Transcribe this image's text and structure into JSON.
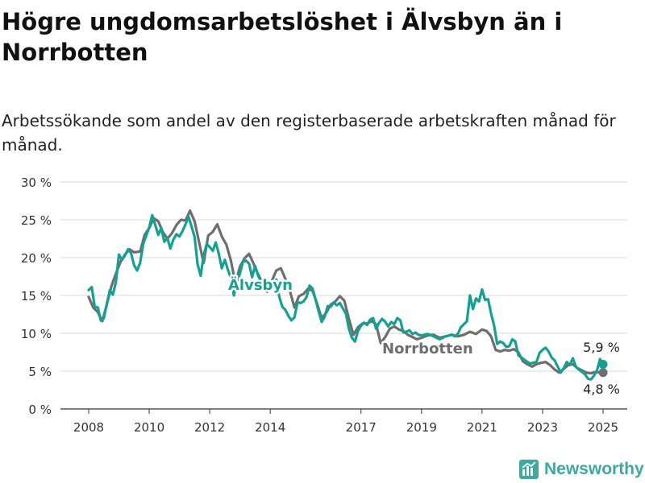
{
  "title": "Högre ungdomsarbetslöshet i Älvsbyn än i Norrbotten",
  "subtitle": "Arbetssökande som andel av den registerbaserade arbetskraften månad för månad.",
  "brand": {
    "name": "Newsworthy",
    "color": "#3ea99f",
    "logo_icon": "bar-chart-logo-icon"
  },
  "chart_data": {
    "type": "line",
    "title": "Högre ungdomsarbetslöshet i Älvsbyn än i Norrbotten",
    "xlabel": "",
    "ylabel": "",
    "ylim": [
      0,
      30
    ],
    "xlim": [
      2008,
      2025.5
    ],
    "y_ticks": [
      0,
      5,
      10,
      15,
      20,
      25,
      30
    ],
    "y_tick_labels": [
      "0 %",
      "5 %",
      "10 %",
      "15 %",
      "20 %",
      "25 %",
      "30 %"
    ],
    "x_ticks": [
      2008,
      2010,
      2012,
      2014,
      2017,
      2019,
      2021,
      2023,
      2025
    ],
    "x_tick_labels": [
      "2008",
      "2010",
      "2012",
      "2014",
      "2017",
      "2019",
      "2021",
      "2023",
      "2025"
    ],
    "grid": true,
    "series": [
      {
        "name": "Norrbotten",
        "label": "Norrbotten",
        "color": "#6e6e6e",
        "end_label": "4,8 %",
        "points": [
          [
            2008.0,
            14.8
          ],
          [
            2008.15,
            13.4
          ],
          [
            2008.3,
            12.8
          ],
          [
            2008.45,
            11.6
          ],
          [
            2008.6,
            13.8
          ],
          [
            2008.75,
            16.2
          ],
          [
            2008.9,
            17.9
          ],
          [
            2009.05,
            19.4
          ],
          [
            2009.2,
            20.4
          ],
          [
            2009.35,
            21.1
          ],
          [
            2009.5,
            20.7
          ],
          [
            2009.7,
            20.8
          ],
          [
            2009.85,
            23.0
          ],
          [
            2010.0,
            23.9
          ],
          [
            2010.15,
            25.2
          ],
          [
            2010.3,
            24.8
          ],
          [
            2010.45,
            23.4
          ],
          [
            2010.6,
            22.5
          ],
          [
            2010.75,
            23.2
          ],
          [
            2010.9,
            24.3
          ],
          [
            2011.05,
            25.0
          ],
          [
            2011.2,
            24.9
          ],
          [
            2011.35,
            26.2
          ],
          [
            2011.5,
            24.8
          ],
          [
            2011.65,
            22.0
          ],
          [
            2011.8,
            19.3
          ],
          [
            2011.95,
            22.9
          ],
          [
            2012.1,
            23.4
          ],
          [
            2012.25,
            24.4
          ],
          [
            2012.4,
            22.8
          ],
          [
            2012.55,
            21.7
          ],
          [
            2012.7,
            19.6
          ],
          [
            2012.85,
            16.6
          ],
          [
            2013.0,
            18.8
          ],
          [
            2013.15,
            19.9
          ],
          [
            2013.3,
            20.5
          ],
          [
            2013.45,
            19.2
          ],
          [
            2013.6,
            17.8
          ],
          [
            2013.75,
            16.6
          ],
          [
            2013.9,
            15.5
          ],
          [
            2014.05,
            16.9
          ],
          [
            2014.2,
            18.3
          ],
          [
            2014.35,
            18.6
          ],
          [
            2014.5,
            17.2
          ],
          [
            2014.65,
            15.6
          ],
          [
            2014.8,
            13.4
          ],
          [
            2014.95,
            14.9
          ],
          [
            2015.1,
            15.2
          ],
          [
            2015.25,
            15.9
          ],
          [
            2015.4,
            15.6
          ],
          [
            2015.55,
            13.9
          ],
          [
            2015.7,
            12.0
          ],
          [
            2015.85,
            12.7
          ],
          [
            2016.0,
            13.8
          ],
          [
            2016.15,
            14.2
          ],
          [
            2016.3,
            14.9
          ],
          [
            2016.45,
            14.3
          ],
          [
            2016.6,
            11.9
          ],
          [
            2016.75,
            9.8
          ],
          [
            2016.9,
            10.8
          ],
          [
            2017.05,
            11.3
          ],
          [
            2017.2,
            11.3
          ],
          [
            2017.35,
            11.6
          ],
          [
            2017.5,
            11.2
          ],
          [
            2017.65,
            8.7
          ],
          [
            2017.8,
            9.5
          ],
          [
            2017.95,
            10.6
          ],
          [
            2018.1,
            10.9
          ],
          [
            2018.25,
            10.5
          ],
          [
            2018.4,
            10.3
          ],
          [
            2018.55,
            9.8
          ],
          [
            2018.7,
            9.5
          ],
          [
            2018.85,
            9.2
          ],
          [
            2019.0,
            9.4
          ],
          [
            2019.2,
            9.7
          ],
          [
            2019.4,
            9.8
          ],
          [
            2019.6,
            9.4
          ],
          [
            2019.8,
            9.6
          ],
          [
            2020.0,
            9.8
          ],
          [
            2020.2,
            9.6
          ],
          [
            2020.4,
            9.8
          ],
          [
            2020.6,
            10.2
          ],
          [
            2020.8,
            9.9
          ],
          [
            2021.0,
            10.5
          ],
          [
            2021.15,
            10.3
          ],
          [
            2021.3,
            9.6
          ],
          [
            2021.45,
            7.8
          ],
          [
            2021.6,
            7.6
          ],
          [
            2021.75,
            7.8
          ],
          [
            2021.9,
            7.7
          ],
          [
            2022.05,
            7.9
          ],
          [
            2022.2,
            7.5
          ],
          [
            2022.35,
            6.3
          ],
          [
            2022.5,
            5.9
          ],
          [
            2022.65,
            5.6
          ],
          [
            2022.8,
            5.9
          ],
          [
            2022.95,
            6.1
          ],
          [
            2023.1,
            6.2
          ],
          [
            2023.25,
            5.8
          ],
          [
            2023.4,
            5.2
          ],
          [
            2023.55,
            4.8
          ],
          [
            2023.7,
            5.3
          ],
          [
            2023.85,
            5.8
          ],
          [
            2024.0,
            5.9
          ],
          [
            2024.15,
            5.4
          ],
          [
            2024.3,
            5.1
          ],
          [
            2024.45,
            4.8
          ],
          [
            2024.6,
            4.7
          ],
          [
            2024.75,
            4.9
          ],
          [
            2024.9,
            4.8
          ],
          [
            2025.0,
            4.8
          ]
        ]
      },
      {
        "name": "Älvsbyn",
        "label": "Älvsbyn",
        "color": "#16a091",
        "end_label": "5,9 %",
        "points": [
          [
            2008.0,
            15.7
          ],
          [
            2008.1,
            16.1
          ],
          [
            2008.2,
            13.5
          ],
          [
            2008.3,
            13.4
          ],
          [
            2008.4,
            11.7
          ],
          [
            2008.5,
            12.0
          ],
          [
            2008.6,
            13.9
          ],
          [
            2008.7,
            15.7
          ],
          [
            2008.8,
            15.1
          ],
          [
            2008.9,
            16.8
          ],
          [
            2009.0,
            20.4
          ],
          [
            2009.1,
            19.7
          ],
          [
            2009.2,
            20.3
          ],
          [
            2009.3,
            21.1
          ],
          [
            2009.4,
            20.6
          ],
          [
            2009.5,
            19.0
          ],
          [
            2009.6,
            18.3
          ],
          [
            2009.7,
            19.3
          ],
          [
            2009.8,
            21.8
          ],
          [
            2009.9,
            22.9
          ],
          [
            2010.0,
            24.0
          ],
          [
            2010.1,
            25.6
          ],
          [
            2010.2,
            24.3
          ],
          [
            2010.3,
            23.0
          ],
          [
            2010.4,
            23.9
          ],
          [
            2010.5,
            22.1
          ],
          [
            2010.6,
            22.6
          ],
          [
            2010.7,
            21.2
          ],
          [
            2010.8,
            22.4
          ],
          [
            2010.9,
            23.1
          ],
          [
            2011.0,
            22.8
          ],
          [
            2011.1,
            23.5
          ],
          [
            2011.2,
            24.4
          ],
          [
            2011.3,
            25.4
          ],
          [
            2011.4,
            24.1
          ],
          [
            2011.5,
            22.7
          ],
          [
            2011.6,
            19.1
          ],
          [
            2011.7,
            17.6
          ],
          [
            2011.8,
            20.3
          ],
          [
            2011.9,
            21.8
          ],
          [
            2012.0,
            21.4
          ],
          [
            2012.1,
            20.9
          ],
          [
            2012.2,
            22.0
          ],
          [
            2012.3,
            20.5
          ],
          [
            2012.4,
            18.6
          ],
          [
            2012.5,
            19.7
          ],
          [
            2012.6,
            18.4
          ],
          [
            2012.7,
            17.3
          ],
          [
            2012.8,
            15.0
          ],
          [
            2012.9,
            16.8
          ],
          [
            2013.0,
            17.9
          ],
          [
            2013.1,
            19.5
          ],
          [
            2013.2,
            19.6
          ],
          [
            2013.3,
            19.2
          ],
          [
            2013.4,
            17.4
          ],
          [
            2013.5,
            18.9
          ],
          [
            2013.6,
            17.6
          ],
          [
            2013.7,
            16.8
          ],
          [
            2013.8,
            16.2
          ],
          [
            2013.9,
            16.5
          ],
          [
            2014.0,
            16.8
          ],
          [
            2014.1,
            15.9
          ],
          [
            2014.2,
            17.1
          ],
          [
            2014.3,
            14.8
          ],
          [
            2014.4,
            13.5
          ],
          [
            2014.5,
            13.1
          ],
          [
            2014.6,
            12.3
          ],
          [
            2014.7,
            11.7
          ],
          [
            2014.8,
            12.1
          ],
          [
            2014.9,
            14.1
          ],
          [
            2015.0,
            14.0
          ],
          [
            2015.1,
            14.2
          ],
          [
            2015.2,
            14.8
          ],
          [
            2015.3,
            16.3
          ],
          [
            2015.4,
            15.9
          ],
          [
            2015.5,
            14.4
          ],
          [
            2015.6,
            12.9
          ],
          [
            2015.7,
            11.5
          ],
          [
            2015.8,
            12.2
          ],
          [
            2015.9,
            13.6
          ],
          [
            2016.0,
            13.5
          ],
          [
            2016.1,
            14.1
          ],
          [
            2016.2,
            13.7
          ],
          [
            2016.3,
            14.0
          ],
          [
            2016.4,
            13.3
          ],
          [
            2016.5,
            12.6
          ],
          [
            2016.6,
            10.6
          ],
          [
            2016.7,
            9.4
          ],
          [
            2016.8,
            8.9
          ],
          [
            2016.9,
            10.3
          ],
          [
            2017.0,
            11.0
          ],
          [
            2017.1,
            11.4
          ],
          [
            2017.2,
            11.1
          ],
          [
            2017.3,
            11.8
          ],
          [
            2017.4,
            12.0
          ],
          [
            2017.5,
            10.6
          ],
          [
            2017.6,
            11.4
          ],
          [
            2017.7,
            11.9
          ],
          [
            2017.8,
            11.5
          ],
          [
            2017.9,
            10.9
          ],
          [
            2018.0,
            11.5
          ],
          [
            2018.1,
            11.2
          ],
          [
            2018.2,
            12.0
          ],
          [
            2018.3,
            11.7
          ],
          [
            2018.4,
            10.1
          ],
          [
            2018.5,
            10.2
          ],
          [
            2018.6,
            10.4
          ],
          [
            2018.7,
            9.9
          ],
          [
            2018.8,
            10.1
          ],
          [
            2018.9,
            9.8
          ],
          [
            2019.0,
            9.7
          ],
          [
            2019.2,
            9.9
          ],
          [
            2019.4,
            9.6
          ],
          [
            2019.6,
            9.2
          ],
          [
            2019.8,
            9.6
          ],
          [
            2020.0,
            9.8
          ],
          [
            2020.1,
            9.6
          ],
          [
            2020.2,
            9.9
          ],
          [
            2020.3,
            10.8
          ],
          [
            2020.4,
            11.2
          ],
          [
            2020.5,
            11.6
          ],
          [
            2020.6,
            15.0
          ],
          [
            2020.7,
            13.2
          ],
          [
            2020.8,
            14.6
          ],
          [
            2020.9,
            14.2
          ],
          [
            2021.0,
            15.8
          ],
          [
            2021.1,
            14.4
          ],
          [
            2021.2,
            14.5
          ],
          [
            2021.3,
            12.6
          ],
          [
            2021.4,
            11.0
          ],
          [
            2021.5,
            8.6
          ],
          [
            2021.6,
            8.9
          ],
          [
            2021.7,
            8.7
          ],
          [
            2021.8,
            8.2
          ],
          [
            2021.9,
            8.3
          ],
          [
            2022.0,
            9.2
          ],
          [
            2022.1,
            8.9
          ],
          [
            2022.2,
            7.1
          ],
          [
            2022.3,
            6.8
          ],
          [
            2022.4,
            6.5
          ],
          [
            2022.5,
            6.2
          ],
          [
            2022.6,
            6.0
          ],
          [
            2022.7,
            6.1
          ],
          [
            2022.8,
            6.2
          ],
          [
            2022.9,
            7.4
          ],
          [
            2023.0,
            7.8
          ],
          [
            2023.1,
            8.1
          ],
          [
            2023.2,
            7.6
          ],
          [
            2023.3,
            6.8
          ],
          [
            2023.4,
            6.4
          ],
          [
            2023.5,
            5.6
          ],
          [
            2023.6,
            4.8
          ],
          [
            2023.7,
            5.4
          ],
          [
            2023.8,
            6.2
          ],
          [
            2023.9,
            5.8
          ],
          [
            2024.0,
            6.7
          ],
          [
            2024.1,
            5.6
          ],
          [
            2024.2,
            5.2
          ],
          [
            2024.3,
            4.9
          ],
          [
            2024.4,
            4.6
          ],
          [
            2024.5,
            4.0
          ],
          [
            2024.6,
            3.9
          ],
          [
            2024.7,
            4.4
          ],
          [
            2024.8,
            5.1
          ],
          [
            2024.9,
            6.6
          ],
          [
            2025.0,
            5.9
          ]
        ]
      }
    ]
  }
}
